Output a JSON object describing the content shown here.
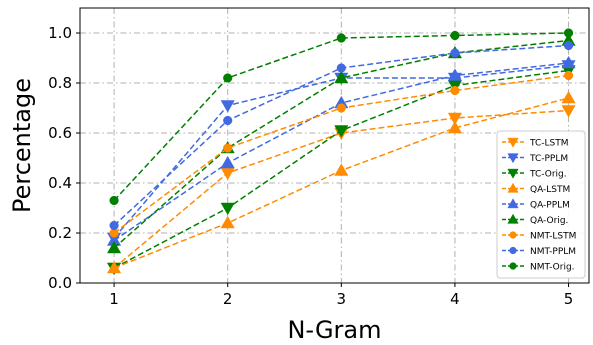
{
  "chart_data": {
    "type": "line",
    "title": "",
    "xlabel": "N-Gram",
    "ylabel": "Percentage",
    "x": [
      1,
      2,
      3,
      4,
      5
    ],
    "xlim": [
      0.7,
      5.18
    ],
    "ylim": [
      0.0,
      1.1
    ],
    "xticks": [
      "1",
      "2",
      "3",
      "4",
      "5"
    ],
    "yticks": [
      "0.0",
      "0.2",
      "0.4",
      "0.6",
      "0.8",
      "1.0"
    ],
    "grid": true,
    "legend_position": "bottom-right",
    "series": [
      {
        "name": "TC-LSTM",
        "color": "#ff8c00",
        "marker": "triangle-down",
        "values": [
          0.06,
          0.44,
          0.6,
          0.66,
          0.69
        ]
      },
      {
        "name": "TC-PPLM",
        "color": "#4169e1",
        "marker": "triangle-down",
        "values": [
          0.18,
          0.71,
          0.82,
          0.82,
          0.87
        ]
      },
      {
        "name": "TC-Orig.",
        "color": "#008000",
        "marker": "triangle-down",
        "values": [
          0.06,
          0.3,
          0.61,
          0.79,
          0.85
        ]
      },
      {
        "name": "QA-LSTM",
        "color": "#ff8c00",
        "marker": "triangle-up",
        "values": [
          0.06,
          0.24,
          0.45,
          0.62,
          0.74
        ]
      },
      {
        "name": "QA-PPLM",
        "color": "#4169e1",
        "marker": "triangle-up",
        "values": [
          0.17,
          0.48,
          0.72,
          0.83,
          0.88
        ]
      },
      {
        "name": "QA-Orig.",
        "color": "#008000",
        "marker": "triangle-up",
        "values": [
          0.14,
          0.54,
          0.82,
          0.92,
          0.97
        ]
      },
      {
        "name": "NMT-LSTM",
        "color": "#ff8c00",
        "marker": "circle",
        "values": [
          0.2,
          0.54,
          0.7,
          0.77,
          0.83
        ]
      },
      {
        "name": "NMT-PPLM",
        "color": "#4169e1",
        "marker": "circle",
        "values": [
          0.23,
          0.65,
          0.86,
          0.92,
          0.95
        ]
      },
      {
        "name": "NMT-Orig.",
        "color": "#008000",
        "marker": "circle",
        "values": [
          0.33,
          0.82,
          0.98,
          0.99,
          1.0
        ]
      }
    ]
  }
}
